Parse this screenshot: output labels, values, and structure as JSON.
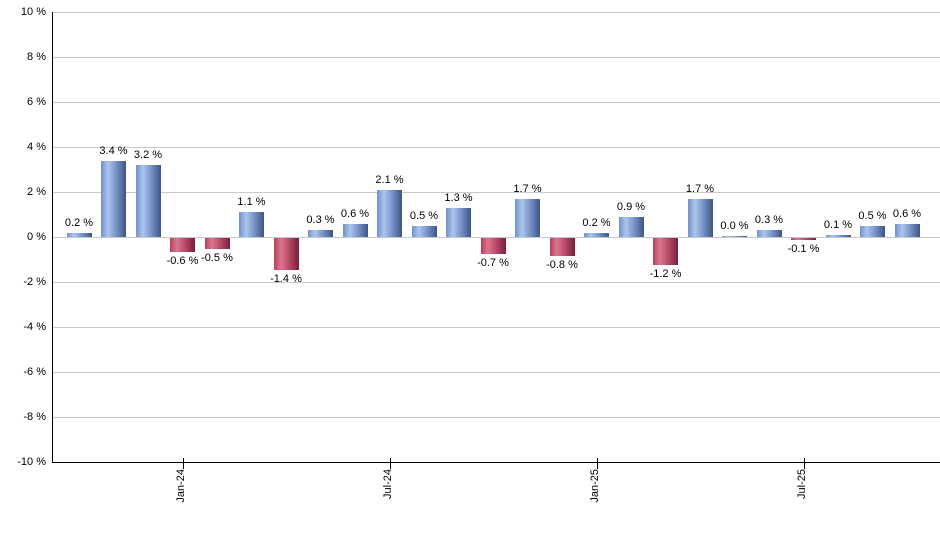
{
  "chart_data": {
    "type": "bar",
    "title": "",
    "xlabel": "",
    "ylabel": "",
    "values": [
      0.2,
      3.4,
      3.2,
      -0.6,
      -0.5,
      1.1,
      -1.4,
      0.3,
      0.6,
      2.1,
      0.5,
      1.3,
      -0.7,
      1.7,
      -0.8,
      0.2,
      0.9,
      -1.2,
      1.7,
      0.0,
      0.3,
      -0.1,
      0.1,
      0.5,
      0.6
    ],
    "data_labels": [
      "0.2 %",
      "3.4 %",
      "3.2 %",
      "-0.6 %",
      "-0.5 %",
      "1.1 %",
      "-1.4 %",
      "0.3 %",
      "0.6 %",
      "2.1 %",
      "0.5 %",
      "1.3 %",
      "-0.7 %",
      "1.7 %",
      "-0.8 %",
      "0.2 %",
      "0.9 %",
      "-1.2 %",
      "1.7 %",
      "0.0 %",
      "0.3 %",
      "-0.1 %",
      "0.1 %",
      "0.5 %",
      "0.6 %"
    ],
    "x_tick_labels": [
      {
        "bar_index": 3,
        "label": "Jan-24"
      },
      {
        "bar_index": 9,
        "label": "Jul-24"
      },
      {
        "bar_index": 15,
        "label": "Jan-25"
      },
      {
        "bar_index": 21,
        "label": "Jul-25"
      }
    ],
    "y_ticks": [
      {
        "value": 10,
        "label": "10 %"
      },
      {
        "value": 8,
        "label": "8 %"
      },
      {
        "value": 6,
        "label": "6 %"
      },
      {
        "value": 4,
        "label": "4 %"
      },
      {
        "value": 2,
        "label": "2 %"
      },
      {
        "value": 0,
        "label": "0 %"
      },
      {
        "value": -2,
        "label": "-2 %"
      },
      {
        "value": -4,
        "label": "-4 %"
      },
      {
        "value": -6,
        "label": "-6 %"
      },
      {
        "value": -8,
        "label": "-8 %"
      },
      {
        "value": -10,
        "label": "-10 %"
      }
    ],
    "ylim": [
      -10,
      10
    ],
    "grid": true,
    "legend": "none",
    "colors": {
      "positive_bar": "#7191C8",
      "positive_bar_highlight": "#ABC5EC",
      "positive_bar_dark": "#3E5580",
      "negative_bar": "#B8415C",
      "negative_bar_highlight": "#DA7690",
      "negative_bar_dark": "#75203A",
      "gridline": "#C9C9C9",
      "axis": "#000000",
      "label_text": "#000000"
    }
  }
}
